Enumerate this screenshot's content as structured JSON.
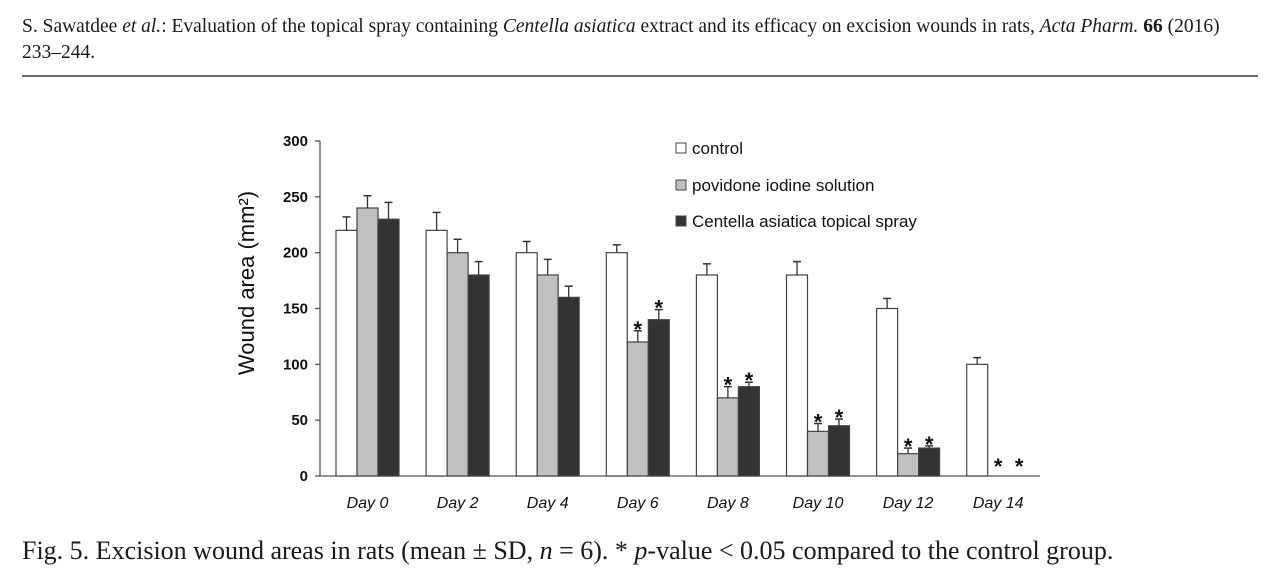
{
  "header": {
    "authors": "S. Sawatdee",
    "et_al": "et al.",
    "sep": ": Evaluation of the topical spray containing ",
    "species": "Centella asiatica",
    "title_rest": " extract and its efficacy on excision wounds in rats, ",
    "journal": "Acta Pharm.",
    "volume": "66",
    "year_pages": " (2016) 233–244."
  },
  "caption": {
    "prefix": "Fig. 5. Excision wound areas in rats (mean ± SD, ",
    "n_var": "n",
    "n_rest": " = 6). * ",
    "p_var": "p",
    "suffix": "-value < 0.05 compared to the control group."
  },
  "chart_data": {
    "type": "bar",
    "title": "",
    "xlabel": "",
    "ylabel": "Wound area (mm²)",
    "ylim": [
      0,
      300
    ],
    "yticks": [
      0,
      50,
      100,
      150,
      200,
      250,
      300
    ],
    "grid": false,
    "legend_position": "top-right",
    "categories": [
      "Day 0",
      "Day 2",
      "Day 4",
      "Day 6",
      "Day 8",
      "Day 10",
      "Day 12",
      "Day 14"
    ],
    "series": [
      {
        "name": "control",
        "color": "#ffffff",
        "values": [
          220,
          220,
          200,
          200,
          180,
          180,
          150,
          100
        ],
        "sd": [
          12,
          16,
          10,
          7,
          10,
          12,
          9,
          6
        ]
      },
      {
        "name": "povidone iodine solution",
        "color": "#c0c0c0",
        "values": [
          240,
          200,
          180,
          120,
          70,
          40,
          20,
          0
        ],
        "sd": [
          11,
          12,
          14,
          10,
          10,
          7,
          5,
          0
        ]
      },
      {
        "name": "Centella asiatica topical spray",
        "color": "#333333",
        "values": [
          230,
          180,
          160,
          140,
          80,
          45,
          25,
          0
        ],
        "sd": [
          15,
          12,
          10,
          9,
          4,
          6,
          2,
          0
        ]
      }
    ],
    "significance_marker": "*",
    "significant": [
      [
        false,
        false,
        false,
        false,
        false,
        false,
        false,
        false
      ],
      [
        false,
        false,
        false,
        true,
        true,
        true,
        true,
        true
      ],
      [
        false,
        false,
        false,
        true,
        true,
        true,
        true,
        true
      ]
    ]
  }
}
